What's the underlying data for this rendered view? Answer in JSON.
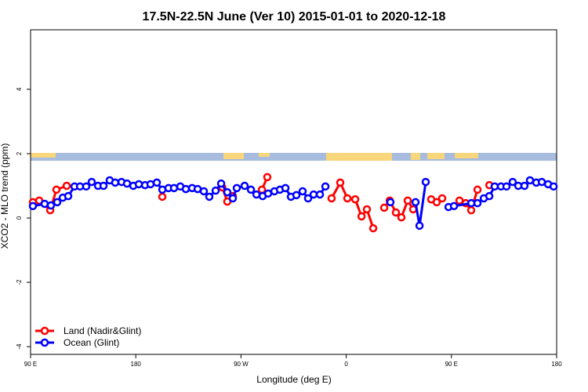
{
  "chart_data": {
    "type": "line",
    "title": "17.5N-22.5N June (Ver 10)   2015-01-01 to 2020-12-18",
    "x_label": "Longitude (deg E)",
    "y_label": "XCO2 - MLO trend (ppm)",
    "xlim": [
      90,
      540
    ],
    "ylim": [
      -4.24,
      5.85
    ],
    "xticks": [
      {
        "value": 90,
        "label": "90 E"
      },
      180,
      {
        "value": 270,
        "label": "90 W"
      },
      {
        "value": 360,
        "label": "0"
      },
      {
        "value": 450,
        "label": "90 E"
      },
      {
        "value": 540,
        "label": "180"
      }
    ],
    "yticks": [
      -4,
      -2,
      0,
      2,
      4
    ],
    "legend": "bottom-left",
    "series": [
      {
        "name": "Land (Nadir&Glint)",
        "color": "#ff0000",
        "x": [
          92,
          97.4,
          106.8,
          112.1,
          120.9,
          null,
          202.7,
          null,
          254,
          258.3,
          263,
          null,
          287.9,
          292.5,
          null,
          347.5,
          354.9,
          361,
          367.7,
          373.1,
          377.7,
          383.1,
          null,
          392.5,
          397.2,
          402.5,
          407.2,
          412.6,
          417.3,
          null,
          432.7,
          437.4,
          442.1,
          null,
          456.9,
          462.2,
          466.9,
          472.3,
          null,
          482.4
        ],
        "values": [
          0.49,
          0.54,
          0.24,
          0.88,
          1.0,
          null,
          0.66,
          null,
          0.95,
          0.51,
          0.68,
          null,
          0.88,
          1.27,
          null,
          0.61,
          1.1,
          0.61,
          0.58,
          0.05,
          0.27,
          -0.32,
          null,
          0.32,
          0.54,
          0.17,
          0.02,
          0.54,
          0.27,
          null,
          0.58,
          0.49,
          0.61,
          null,
          0.54,
          0.46,
          0.24,
          0.88,
          null,
          1.02
        ]
      },
      {
        "name": "Ocean (Glint)",
        "color": "#0000ff",
        "x": [
          92,
          102,
          107.4,
          112.8,
          117.5,
          122.2,
          127.6,
          132.3,
          137.6,
          142.3,
          147.7,
          152.4,
          157.7,
          162.4,
          167.8,
          172.5,
          177.9,
          182.6,
          187.9,
          192.6,
          198,
          202.7,
          208,
          212.7,
          218.1,
          222.8,
          228.2,
          232.9,
          238.2,
          242.9,
          248.3,
          253,
          258.3,
          263,
          266.4,
          273.1,
          278.5,
          283.2,
          288.5,
          293.2,
          298.6,
          303.3,
          308,
          312.7,
          317.4,
          322.7,
          327.4,
          332.1,
          337.5,
          342.2,
          null,
          397.8,
          null,
          419.3,
          422.7,
          428,
          null,
          447.5,
          452.2,
          467,
          472.3,
          477.7,
          482.4,
          487,
          492.4,
          497.1,
          502.4,
          507.2,
          512.5,
          517.2,
          522.6,
          527.3,
          532.7,
          537.4
        ],
        "values": [
          0.37,
          0.44,
          0.39,
          0.49,
          0.63,
          0.68,
          0.98,
          0.98,
          0.98,
          1.12,
          1.0,
          1.0,
          1.17,
          1.1,
          1.12,
          1.07,
          1.0,
          1.05,
          1.02,
          1.05,
          1.1,
          0.88,
          0.93,
          0.93,
          0.98,
          0.9,
          0.93,
          0.9,
          0.83,
          0.66,
          0.85,
          1.07,
          0.8,
          0.61,
          0.93,
          1.0,
          0.88,
          0.73,
          0.68,
          0.76,
          0.83,
          0.88,
          0.93,
          0.66,
          0.71,
          0.83,
          0.61,
          0.73,
          0.73,
          0.98,
          null,
          0.49,
          null,
          0.49,
          -0.24,
          1.12,
          null,
          0.34,
          0.37,
          0.46,
          0.46,
          0.61,
          0.68,
          0.98,
          0.98,
          0.98,
          1.12,
          1.0,
          1.0,
          1.17,
          1.1,
          1.12,
          1.05,
          0.98
        ]
      }
    ]
  }
}
